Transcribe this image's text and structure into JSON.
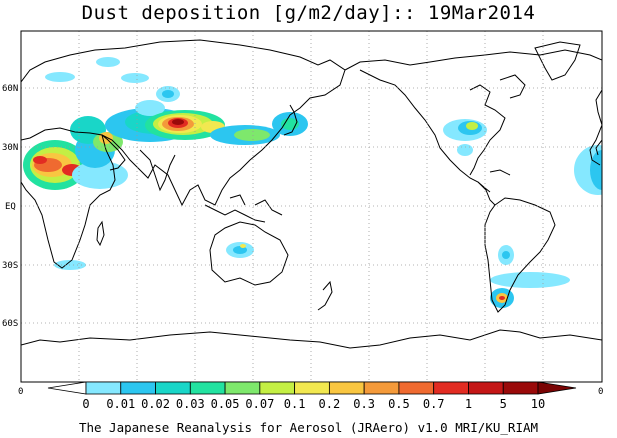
{
  "title": "Dust deposition [g/m2/day]:: 19Mar2014",
  "footer": "The Japanese Reanalysis for Aerosol (JRAero) v1.0 MRI/KU_RIAM",
  "axes": {
    "lat_labels": [
      "60N",
      "30N",
      "EQ",
      "30S",
      "60S"
    ],
    "left_corner_label": "0",
    "right_corner_label": "0"
  },
  "legend": {
    "labels": [
      "0",
      "0.01",
      "0.02",
      "0.03",
      "0.05",
      "0.07",
      "0.1",
      "0.2",
      "0.3",
      "0.5",
      "0.7",
      "1",
      "5",
      "10"
    ],
    "colors": [
      "#ffffff",
      "#85e8ff",
      "#2cc6f0",
      "#19d6c8",
      "#22e2a0",
      "#7ee86c",
      "#c4ef44",
      "#f2e850",
      "#f9c641",
      "#f49a3a",
      "#ef6a30",
      "#e22c22",
      "#c41616",
      "#9a0a0a",
      "#7a0404"
    ]
  },
  "map": {
    "projection": "cylindrical, centered on 180",
    "grid": "dotted, 30 degree spacing",
    "coastlines": "black"
  }
}
